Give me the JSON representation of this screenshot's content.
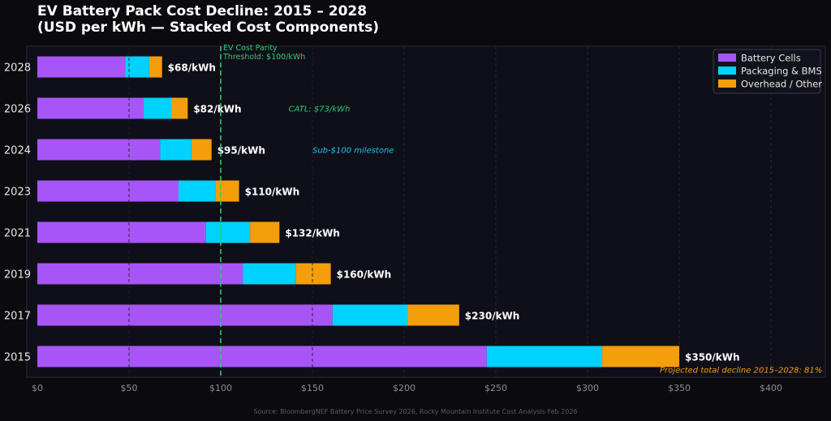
{
  "chart_data": {
    "type": "bar",
    "orientation": "horizontal",
    "stacked": true,
    "title_lines": [
      "EV Battery Pack Cost Decline: 2015 – 2028",
      "(USD per kWh — Stacked Cost Components)"
    ],
    "categories": [
      "2015",
      "2017",
      "2019",
      "2021",
      "2023",
      "2024",
      "2026",
      "2028"
    ],
    "series": [
      {
        "name": "Battery Cells",
        "color": "#a855f7",
        "values": [
          245,
          161,
          112,
          92,
          77,
          67,
          58,
          48
        ]
      },
      {
        "name": "Packaging & BMS",
        "color": "#00d2ff",
        "values": [
          63,
          41,
          29,
          24,
          20,
          17,
          15,
          13
        ]
      },
      {
        "name": "Overhead / Other",
        "color": "#f59e0b",
        "values": [
          42,
          28,
          19,
          16,
          13,
          11,
          9,
          7
        ]
      }
    ],
    "totals": [
      "$350/kWh",
      "$230/kWh",
      "$160/kWh",
      "$132/kWh",
      "$110/kWh",
      "$95/kWh",
      "$82/kWh",
      "$68/kWh"
    ],
    "total_values": [
      350,
      230,
      160,
      132,
      110,
      95,
      82,
      68
    ],
    "xlim": [
      0,
      430
    ],
    "xticks": [
      0,
      50,
      100,
      150,
      200,
      250,
      300,
      350,
      400
    ],
    "xtick_labels": [
      "$0",
      "$50",
      "$100",
      "$150",
      "$200",
      "$250",
      "$300",
      "$350",
      "$400"
    ],
    "reference_line": {
      "x": 100,
      "label_lines": [
        "EV Cost Parity",
        "Threshold: $100/kWh"
      ],
      "color": "#2ecc71"
    },
    "annotations": [
      {
        "text": "CATL: $73/kWh",
        "x": 137,
        "category": "2026",
        "style": "green"
      },
      {
        "text": "Sub-$100 milestone",
        "x": 150,
        "category": "2024",
        "style": "cyan"
      },
      {
        "text": "Projected total decline 2015–2028: 81%",
        "x": 428,
        "category": "2015",
        "style": "orange",
        "anchor": "end"
      }
    ],
    "legend_position": "top-right",
    "grid": true,
    "source": "Source: BloombergNEF Battery Price Survey 2026, Rocky Mountain Institute Cost Analysis Feb 2026"
  }
}
